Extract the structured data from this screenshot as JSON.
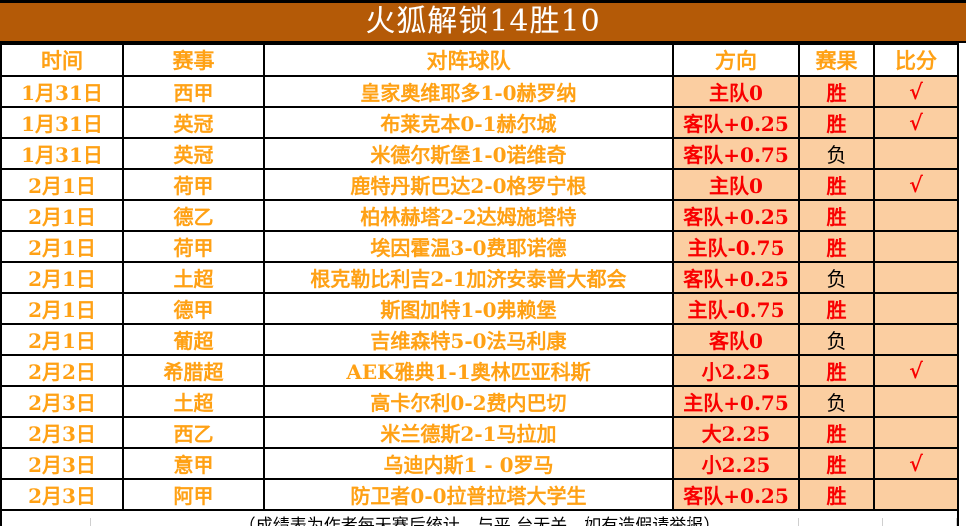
{
  "title": "火狐解锁14胜10",
  "columns": [
    "时间",
    "赛事",
    "对阵球队",
    "方向",
    "赛果",
    "比分"
  ],
  "footer_note": "（成绩表为作者每天赛后统计，与平.台无关，如有造假请举报）",
  "colors": {
    "title_bg": "#B45A07",
    "title_text": "#FFFFFF",
    "accent_orange": "#FFA115",
    "accent_red": "#F90000",
    "highlight_peach": "#FBCEA1",
    "loss_text": "#000000",
    "grid_border": "#000000"
  },
  "check_mark": "√",
  "rows": [
    {
      "date": "1月31日",
      "league": "西甲",
      "match": "皇家奥维耶多1-0赫罗纳",
      "direction": "主队0",
      "result": "胜",
      "result_style": "win",
      "score_check": "√"
    },
    {
      "date": "1月31日",
      "league": "英冠",
      "match": "布莱克本0-1赫尔城",
      "direction": "客队+0.25",
      "result": "胜",
      "result_style": "win",
      "score_check": "√"
    },
    {
      "date": "1月31日",
      "league": "英冠",
      "match": "米德尔斯堡1-0诺维奇",
      "direction": "客队+0.75",
      "result": "负",
      "result_style": "loss",
      "score_check": ""
    },
    {
      "date": "2月1日",
      "league": "荷甲",
      "match": "鹿特丹斯巴达2-0格罗宁根",
      "direction": "主队0",
      "result": "胜",
      "result_style": "win",
      "score_check": "√"
    },
    {
      "date": "2月1日",
      "league": "德乙",
      "match": "柏林赫塔2-2达姆施塔特",
      "direction": "客队+0.25",
      "result": "胜",
      "result_style": "win",
      "score_check": ""
    },
    {
      "date": "2月1日",
      "league": "荷甲",
      "match": "埃因霍温3-0费耶诺德",
      "direction": "主队-0.75",
      "result": "胜",
      "result_style": "win",
      "score_check": ""
    },
    {
      "date": "2月1日",
      "league": "土超",
      "match": "根克勒比利吉2-1加济安泰普大都会",
      "direction": "客队+0.25",
      "result": "负",
      "result_style": "loss",
      "score_check": ""
    },
    {
      "date": "2月1日",
      "league": "德甲",
      "match": "斯图加特1-0弗赖堡",
      "direction": "主队-0.75",
      "result": "胜",
      "result_style": "win",
      "score_check": ""
    },
    {
      "date": "2月1日",
      "league": "葡超",
      "match": "吉维森特5-0法马利康",
      "direction": "客队0",
      "result": "负",
      "result_style": "loss",
      "score_check": ""
    },
    {
      "date": "2月2日",
      "league": "希腊超",
      "match": "AEK雅典1-1奥林匹亚科斯",
      "direction": "小2.25",
      "result": "胜",
      "result_style": "win",
      "score_check": "√"
    },
    {
      "date": "2月3日",
      "league": "土超",
      "match": "高卡尔利0-2费内巴切",
      "direction": "主队+0.75",
      "result": "负",
      "result_style": "loss",
      "score_check": ""
    },
    {
      "date": "2月3日",
      "league": "西乙",
      "match": "米兰德斯2-1马拉加",
      "direction": "大2.25",
      "result": "胜",
      "result_style": "win",
      "score_check": ""
    },
    {
      "date": "2月3日",
      "league": "意甲",
      "match": "乌迪内斯1 - 0罗马",
      "direction": "小2.25",
      "result": "胜",
      "result_style": "win",
      "score_check": "√"
    },
    {
      "date": "2月3日",
      "league": "阿甲",
      "match": "防卫者0-0拉普拉塔大学生",
      "direction": "客队+0.25",
      "result": "胜",
      "result_style": "win",
      "score_check": ""
    }
  ]
}
